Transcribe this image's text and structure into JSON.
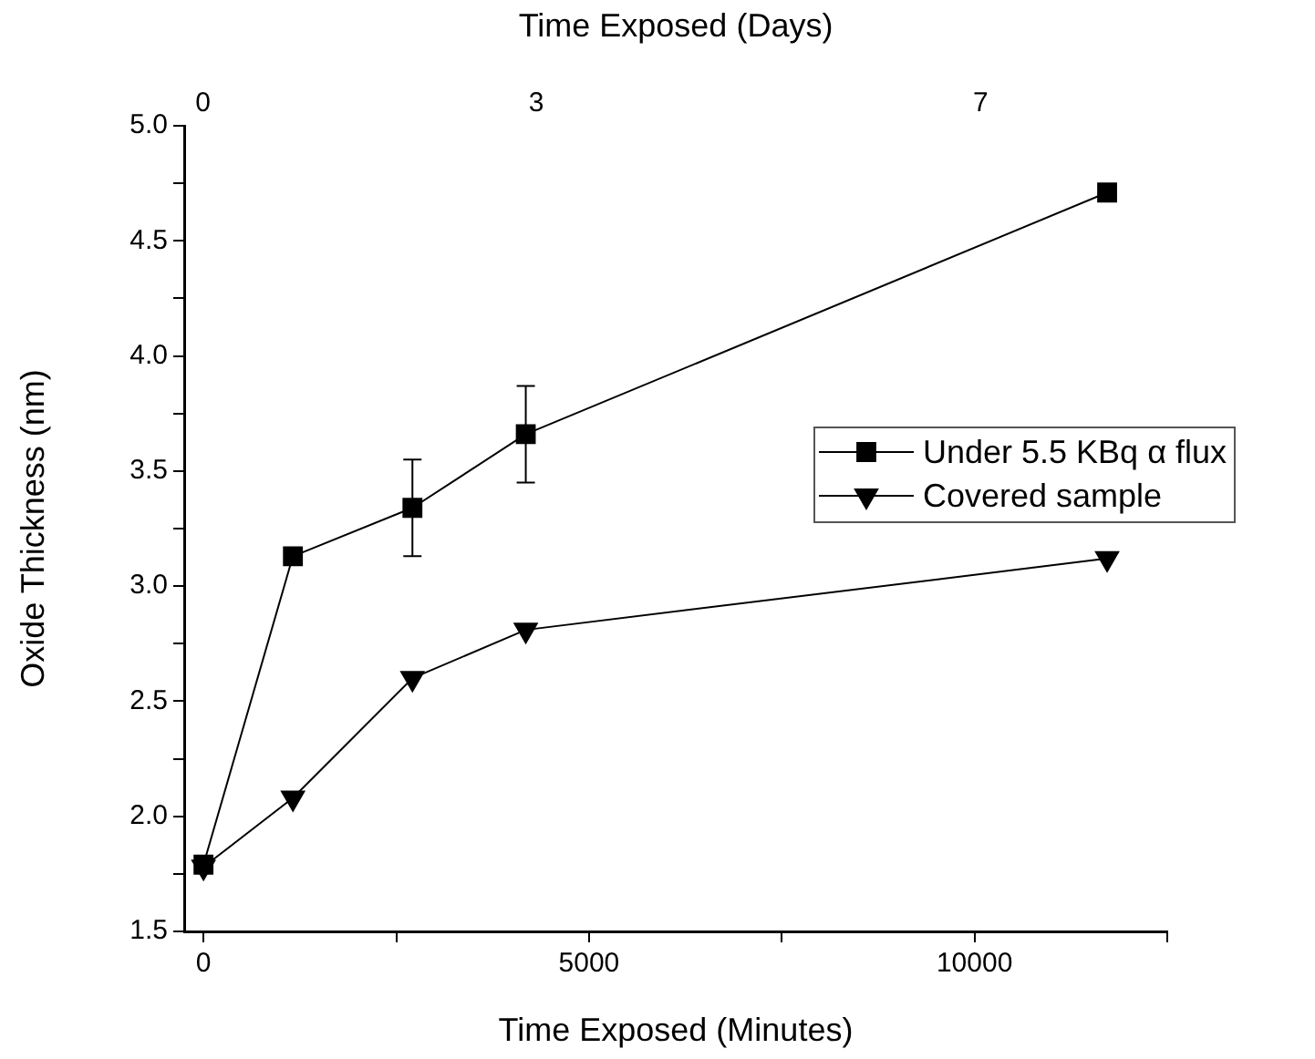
{
  "chart_data": {
    "type": "line",
    "xlabel": "Time Exposed (Minutes)",
    "x2label": "Time Exposed (Days)",
    "ylabel": "Oxide Thickness (nm)",
    "xlim": [
      -250,
      12500
    ],
    "xticks": [
      0,
      {
        "value": 2500,
        "label": null
      },
      5000,
      {
        "value": 7500,
        "label": null
      },
      10000,
      {
        "value": 12500,
        "label": null
      }
    ],
    "x2lim": [
      -0.17,
      8.68
    ],
    "x2ticks": [
      0,
      3,
      7
    ],
    "ylim": [
      1.5,
      5.0
    ],
    "yticks": [
      1.5,
      {
        "value": 1.75,
        "label": null
      },
      {
        "value": 2,
        "label": "2.0"
      },
      {
        "value": 2.25,
        "label": null
      },
      2.5,
      {
        "value": 2.75,
        "label": null
      },
      {
        "value": 3,
        "label": "3.0"
      },
      {
        "value": 3.25,
        "label": null
      },
      3.5,
      {
        "value": 3.75,
        "label": null
      },
      {
        "value": 4,
        "label": "4.0"
      },
      {
        "value": 4.25,
        "label": null
      },
      4.5,
      {
        "value": 4.75,
        "label": null
      },
      {
        "value": 5,
        "label": "5.0"
      }
    ],
    "grid": false,
    "legend": "right",
    "line_style": "solid",
    "series": [
      {
        "name": "Under 5.5 KBq α flux",
        "color": "#000000",
        "marker": "square",
        "x": [
          0,
          1160,
          2710,
          4180,
          11720
        ],
        "values": [
          1.79,
          3.13,
          3.34,
          3.66,
          4.71
        ],
        "errors": [
          null,
          null,
          0.21,
          0.21,
          null
        ]
      },
      {
        "name": "Covered sample",
        "color": "#000000",
        "marker": "triangle",
        "x": [
          0,
          1160,
          2710,
          4180,
          11720
        ],
        "values": [
          1.78,
          2.08,
          2.6,
          2.81,
          3.12
        ]
      }
    ]
  }
}
